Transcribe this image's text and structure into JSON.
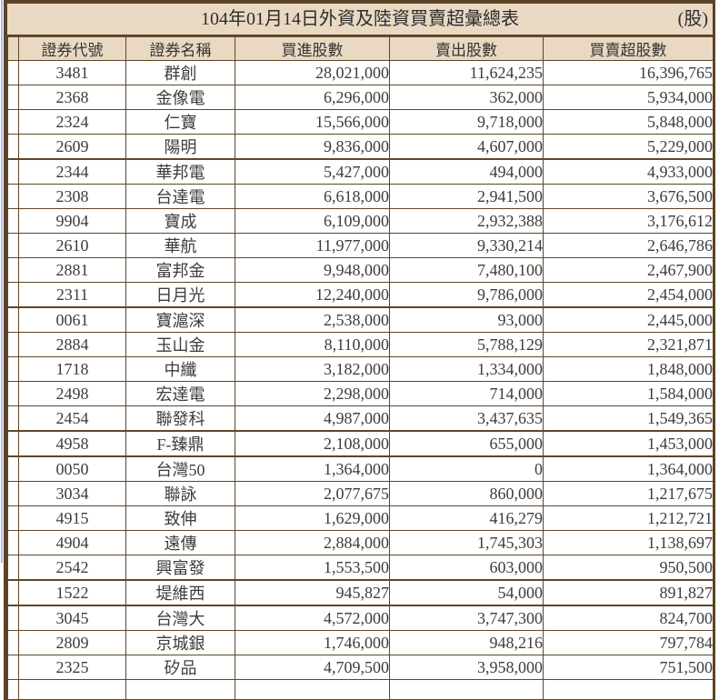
{
  "window": {
    "title": "104年01月14日外資及陸資買賣超彙總表",
    "unit_label": "(股)"
  },
  "table": {
    "columns": [
      "證券代號",
      "證券名稱",
      "買進股數",
      "賣出股數",
      "買賣超股數"
    ],
    "rows": [
      {
        "code": "3481",
        "name": "群創",
        "buy": "28,021,000",
        "sell": "11,624,235",
        "net": "16,396,765"
      },
      {
        "code": "2368",
        "name": "金像電",
        "buy": "6,296,000",
        "sell": "362,000",
        "net": "5,934,000"
      },
      {
        "code": "2324",
        "name": "仁寶",
        "buy": "15,566,000",
        "sell": "9,718,000",
        "net": "5,848,000"
      },
      {
        "code": "2609",
        "name": "陽明",
        "buy": "9,836,000",
        "sell": "4,607,000",
        "net": "5,229,000"
      },
      {
        "code": "2344",
        "name": "華邦電",
        "buy": "5,427,000",
        "sell": "494,000",
        "net": "4,933,000"
      },
      {
        "code": "2308",
        "name": "台達電",
        "buy": "6,618,000",
        "sell": "2,941,500",
        "net": "3,676,500"
      },
      {
        "code": "9904",
        "name": "寶成",
        "buy": "6,109,000",
        "sell": "2,932,388",
        "net": "3,176,612"
      },
      {
        "code": "2610",
        "name": "華航",
        "buy": "11,977,000",
        "sell": "9,330,214",
        "net": "2,646,786"
      },
      {
        "code": "2881",
        "name": "富邦金",
        "buy": "9,948,000",
        "sell": "7,480,100",
        "net": "2,467,900"
      },
      {
        "code": "2311",
        "name": "日月光",
        "buy": "12,240,000",
        "sell": "9,786,000",
        "net": "2,454,000"
      },
      {
        "code": "0061",
        "name": "寶滬深",
        "buy": "2,538,000",
        "sell": "93,000",
        "net": "2,445,000"
      },
      {
        "code": "2884",
        "name": "玉山金",
        "buy": "8,110,000",
        "sell": "5,788,129",
        "net": "2,321,871"
      },
      {
        "code": "1718",
        "name": "中纖",
        "buy": "3,182,000",
        "sell": "1,334,000",
        "net": "1,848,000"
      },
      {
        "code": "2498",
        "name": "宏達電",
        "buy": "2,298,000",
        "sell": "714,000",
        "net": "1,584,000"
      },
      {
        "code": "2454",
        "name": "聯發科",
        "buy": "4,987,000",
        "sell": "3,437,635",
        "net": "1,549,365"
      },
      {
        "code": "4958",
        "name": "F-臻鼎",
        "buy": "2,108,000",
        "sell": "655,000",
        "net": "1,453,000"
      },
      {
        "code": "0050",
        "name": "台灣50",
        "buy": "1,364,000",
        "sell": "0",
        "net": "1,364,000"
      },
      {
        "code": "3034",
        "name": "聯詠",
        "buy": "2,077,675",
        "sell": "860,000",
        "net": "1,217,675"
      },
      {
        "code": "4915",
        "name": "致伸",
        "buy": "1,629,000",
        "sell": "416,279",
        "net": "1,212,721"
      },
      {
        "code": "4904",
        "name": "遠傳",
        "buy": "2,884,000",
        "sell": "1,745,303",
        "net": "1,138,697"
      },
      {
        "code": "2542",
        "name": "興富發",
        "buy": "1,553,500",
        "sell": "603,000",
        "net": "950,500"
      },
      {
        "code": "1522",
        "name": "堤維西",
        "buy": "945,827",
        "sell": "54,000",
        "net": "891,827"
      },
      {
        "code": "3045",
        "name": "台灣大",
        "buy": "4,572,000",
        "sell": "3,747,300",
        "net": "824,700"
      },
      {
        "code": "2809",
        "name": "京城銀",
        "buy": "1,746,000",
        "sell": "948,216",
        "net": "797,784"
      },
      {
        "code": "2325",
        "name": "矽品",
        "buy": "4,709,500",
        "sell": "3,958,000",
        "net": "751,500"
      }
    ]
  },
  "colors": {
    "header_background": "#e9d9c3",
    "grid_border": "#5e4628",
    "row_background": "#ffffff",
    "text": "#3c3c3c",
    "left_edge_line": "#b1b7ea"
  }
}
